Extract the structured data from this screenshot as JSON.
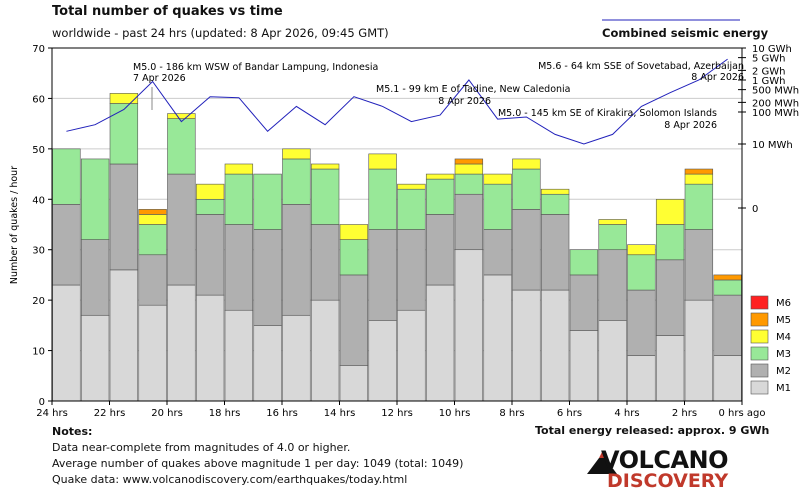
{
  "title": "Total number of quakes vs time",
  "subtitle": "worldwide - past 24 hrs (updated: 8 Apr 2026, 09:45 GMT)",
  "energy_legend": "Combined seismic energy",
  "notes": {
    "heading": "Notes:",
    "line1": "Data near-complete from magnitudes of 4.0 or higher.",
    "line2": "Average number of quakes above magnitude 1 per day: 1049 (total: 1049)",
    "line3": "Quake data: www.volcanodiscovery.com/earthquakes/today.html"
  },
  "total_energy": "Total energy released: approx. 9 GWh",
  "logo": {
    "line1": "VOLCANO",
    "line2": "DISCOVERY"
  },
  "colors": {
    "M1": "#d8d8d8",
    "M2": "#b0b0b0",
    "M3": "#98e898",
    "M4": "#ffff33",
    "M5": "#ff9900",
    "M6": "#ff2222",
    "energy": "#2222bb"
  },
  "chart_data": {
    "type": "bar",
    "stacked": true,
    "title": "Total number of quakes vs time",
    "xlabel": "",
    "ylabel": "Number of quakes / hour",
    "ylim": [
      0,
      70
    ],
    "y_ticks": [
      0,
      10,
      20,
      30,
      40,
      50,
      60,
      70
    ],
    "x_ticks": [
      "24 hrs",
      "22 hrs",
      "20 hrs",
      "18 hrs",
      "16 hrs",
      "14 hrs",
      "12 hrs",
      "10 hrs",
      "8 hrs",
      "6 hrs",
      "4 hrs",
      "2 hrs",
      "0 hrs ago"
    ],
    "legend": [
      "M6",
      "M5",
      "M4",
      "M3",
      "M2",
      "M1"
    ],
    "series": [
      {
        "name": "M1",
        "values": [
          23,
          17,
          26,
          19,
          23,
          21,
          18,
          15,
          17,
          20,
          7,
          16,
          18,
          23,
          30,
          25,
          22,
          22,
          14,
          16,
          9,
          13,
          20,
          9
        ]
      },
      {
        "name": "M2",
        "values": [
          16,
          15,
          21,
          10,
          22,
          16,
          17,
          19,
          22,
          15,
          18,
          18,
          16,
          14,
          11,
          9,
          16,
          15,
          11,
          14,
          13,
          15,
          14,
          12
        ]
      },
      {
        "name": "M3",
        "values": [
          11,
          16,
          12,
          6,
          11,
          3,
          10,
          11,
          9,
          11,
          7,
          12,
          8,
          7,
          4,
          9,
          8,
          4,
          5,
          5,
          7,
          7,
          9,
          3
        ]
      },
      {
        "name": "M4",
        "values": [
          0,
          0,
          2,
          2,
          1,
          3,
          2,
          0,
          2,
          1,
          3,
          3,
          1,
          1,
          2,
          2,
          2,
          1,
          0,
          1,
          2,
          5,
          2,
          0
        ]
      },
      {
        "name": "M5",
        "values": [
          0,
          0,
          0,
          1,
          0,
          0,
          0,
          0,
          0,
          0,
          0,
          0,
          0,
          0,
          1,
          0,
          0,
          0,
          0,
          0,
          0,
          0,
          1,
          1
        ]
      },
      {
        "name": "M6",
        "values": [
          0,
          0,
          0,
          0,
          0,
          0,
          0,
          0,
          0,
          0,
          0,
          0,
          0,
          0,
          0,
          0,
          0,
          0,
          0,
          0,
          0,
          0,
          0,
          0
        ]
      }
    ],
    "energy": {
      "name": "Combined seismic energy",
      "axis_ticks": [
        "10 GWh",
        "5 GWh",
        "2 GWh",
        "1 GWh",
        "500 MWh",
        "200 MWh",
        "100 MWh",
        "10 MWh",
        "0"
      ],
      "axis_values": [
        10,
        5,
        2,
        1,
        0.5,
        0.2,
        0.1,
        0.01,
        0.0001
      ],
      "values": [
        0.025,
        0.04,
        0.12,
        0.9,
        0.05,
        0.3,
        0.28,
        0.025,
        0.15,
        0.04,
        0.3,
        0.15,
        0.05,
        0.08,
        1.0,
        0.06,
        0.07,
        0.02,
        0.01,
        0.02,
        0.15,
        0.4,
        1.0,
        4.5
      ]
    },
    "annotations": [
      {
        "text": "M5.0 - 186 km WSW of Bandar Lampung, Indonesia",
        "date": "7 Apr 2026"
      },
      {
        "text": "M5.1 - 99 km E of Tadine, New Caledonia",
        "date": "8 Apr 2026"
      },
      {
        "text": "M5.6 - 64 km SSE of Sovetabad, Azerbaijan",
        "date": "8 Apr 2026"
      },
      {
        "text": "M5.0 - 145 km SE of Kirakira, Solomon Islands",
        "date": "8 Apr 2026"
      }
    ]
  }
}
